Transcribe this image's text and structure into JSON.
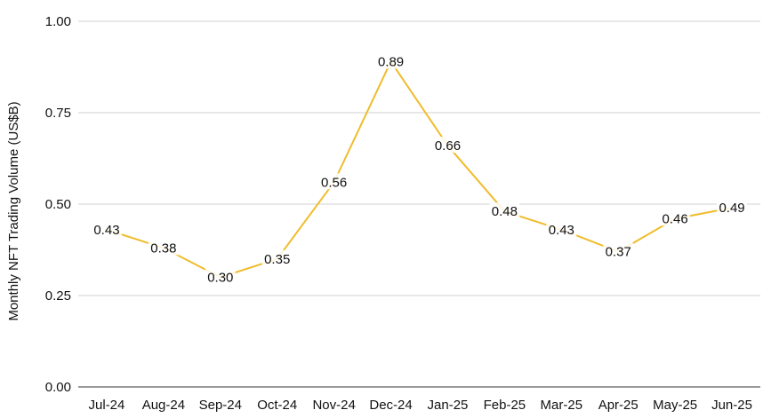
{
  "chart_data": {
    "type": "line",
    "title": "",
    "xlabel": "",
    "ylabel": "Monthly NFT Trading Volume (US$B)",
    "categories": [
      "Jul-24",
      "Aug-24",
      "Sep-24",
      "Oct-24",
      "Nov-24",
      "Dec-24",
      "Jan-25",
      "Feb-25",
      "Mar-25",
      "Apr-25",
      "May-25",
      "Jun-25"
    ],
    "values": [
      0.43,
      0.38,
      0.3,
      0.35,
      0.56,
      0.89,
      0.66,
      0.48,
      0.43,
      0.37,
      0.46,
      0.49
    ],
    "data_labels": [
      "0.43",
      "0.38",
      "0.30",
      "0.35",
      "0.56",
      "0.89",
      "0.66",
      "0.48",
      "0.43",
      "0.37",
      "0.46",
      "0.49"
    ],
    "ylim": [
      0,
      1.0
    ],
    "yticks": [
      0,
      0.25,
      0.5,
      0.75,
      1.0
    ],
    "ytick_labels": [
      "0.00",
      "0.25",
      "0.50",
      "0.75",
      "1.00"
    ],
    "grid": true,
    "legend": "none",
    "line_color": "#f0bc2c"
  }
}
